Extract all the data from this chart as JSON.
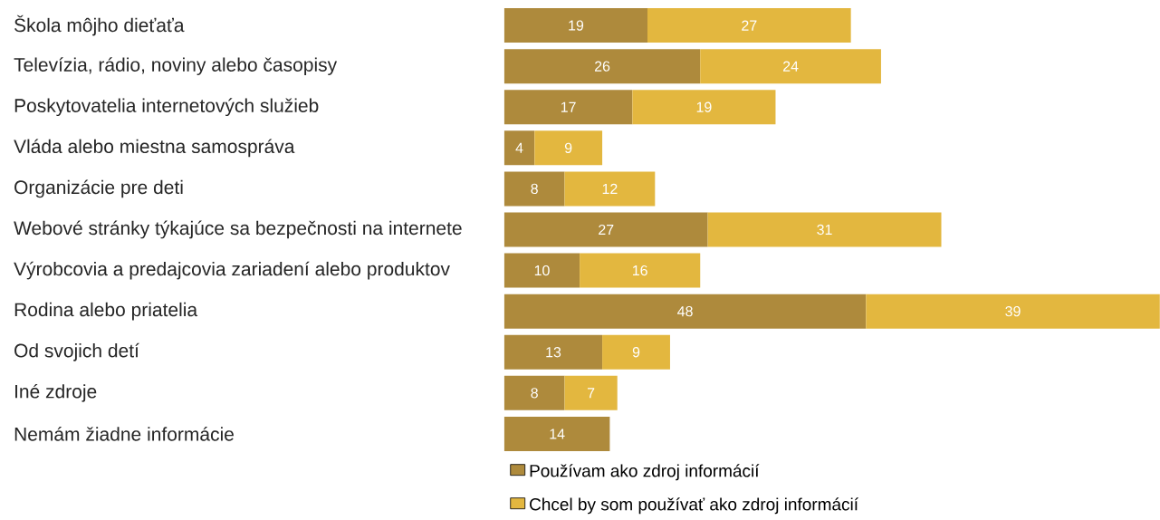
{
  "chart_data": {
    "type": "bar",
    "orientation": "horizontal",
    "stacked": true,
    "data_labels": true,
    "legend": "bottom",
    "categories": [
      "Škola môjho dieťaťa",
      "Televízia, rádio, noviny alebo časopisy",
      "Poskytovatelia internetových služieb",
      "Vláda alebo miestna samospráva",
      "Organizácie pre deti",
      "Webové stránky týkajúce sa bezpečnosti na internete",
      "Výrobcovia a predajcovia zariadení alebo produktov",
      "Rodina alebo priatelia",
      "Od svojich detí",
      "Iné zdroje",
      "Nemám žiadne informácie"
    ],
    "series": [
      {
        "name": "Používam ako zdroj informácií",
        "color": "#ae8a3c",
        "values": [
          19,
          26,
          17,
          4,
          8,
          27,
          10,
          48,
          13,
          8,
          14
        ]
      },
      {
        "name": "Chcel by som používať ako zdroj informácií",
        "color": "#e3b73f",
        "values": [
          27,
          24,
          19,
          9,
          12,
          31,
          16,
          39,
          9,
          7,
          null
        ]
      }
    ]
  }
}
